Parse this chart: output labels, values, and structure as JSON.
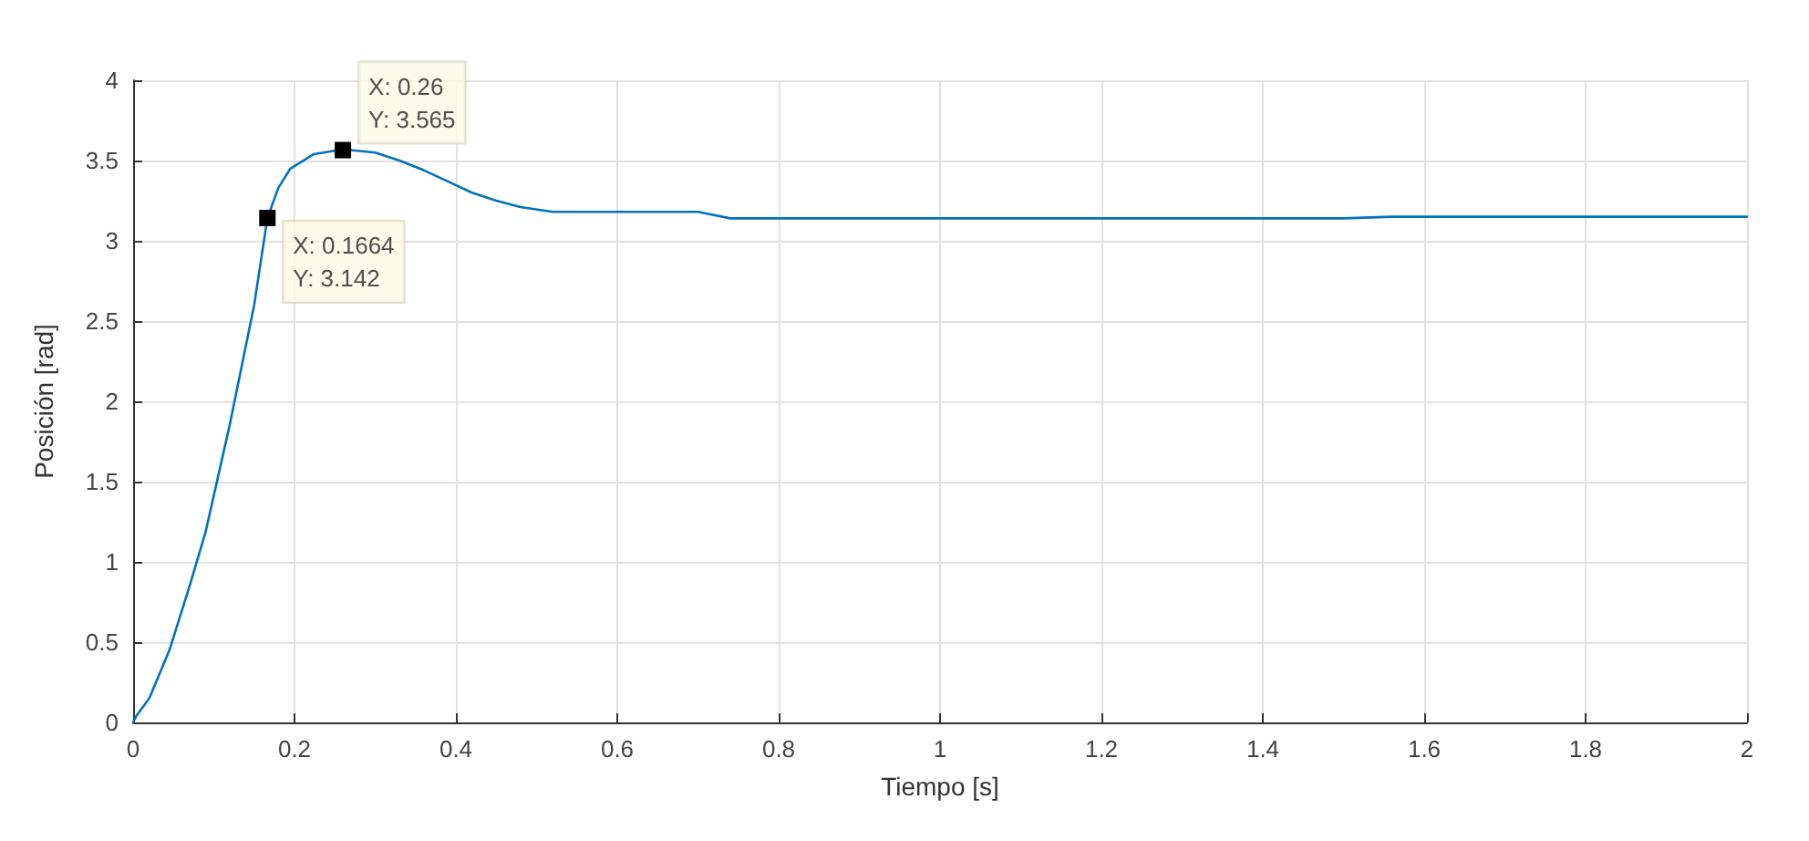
{
  "chart_data": {
    "type": "line",
    "xlabel": "Tiempo [s]",
    "ylabel": "Posición [rad]",
    "x": [
      0,
      0.004,
      0.02,
      0.045,
      0.07,
      0.09,
      0.12,
      0.15,
      0.1664,
      0.18,
      0.195,
      0.224,
      0.26,
      0.3,
      0.33,
      0.36,
      0.39,
      0.42,
      0.45,
      0.48,
      0.52,
      0.58,
      0.64,
      0.7,
      0.71,
      0.74,
      0.8,
      1.0,
      1.2,
      1.4,
      1.5,
      1.56,
      1.6,
      1.8,
      2.0
    ],
    "series": [
      {
        "color": "#0072bd",
        "values": [
          0,
          0.04,
          0.15,
          0.45,
          0.85,
          1.19,
          1.86,
          2.6,
          3.14,
          3.33,
          3.45,
          3.54,
          3.57,
          3.55,
          3.5,
          3.44,
          3.37,
          3.3,
          3.25,
          3.21,
          3.18,
          3.18,
          3.18,
          3.18,
          3.17,
          3.14,
          3.14,
          3.14,
          3.14,
          3.14,
          3.14,
          3.15,
          3.15,
          3.15,
          3.15
        ]
      }
    ],
    "xlim": [
      0,
      2
    ],
    "xticks": [
      0,
      0.2,
      0.4,
      0.6,
      0.8,
      1,
      1.2,
      1.4,
      1.6,
      1.8,
      2
    ],
    "ylim": [
      0,
      4
    ],
    "yticks": [
      0,
      0.5,
      1,
      1.5,
      2,
      2.5,
      3,
      3.5,
      4
    ],
    "grid": true,
    "marker": "none",
    "line_style": "solid",
    "annotations": [
      {
        "text": "X: 0.1664\nY: 3.142",
        "x": 0.1664,
        "y": 3.142
      },
      {
        "text": "X: 0.26\nY: 3.565",
        "x": 0.26,
        "y": 3.565
      }
    ]
  }
}
